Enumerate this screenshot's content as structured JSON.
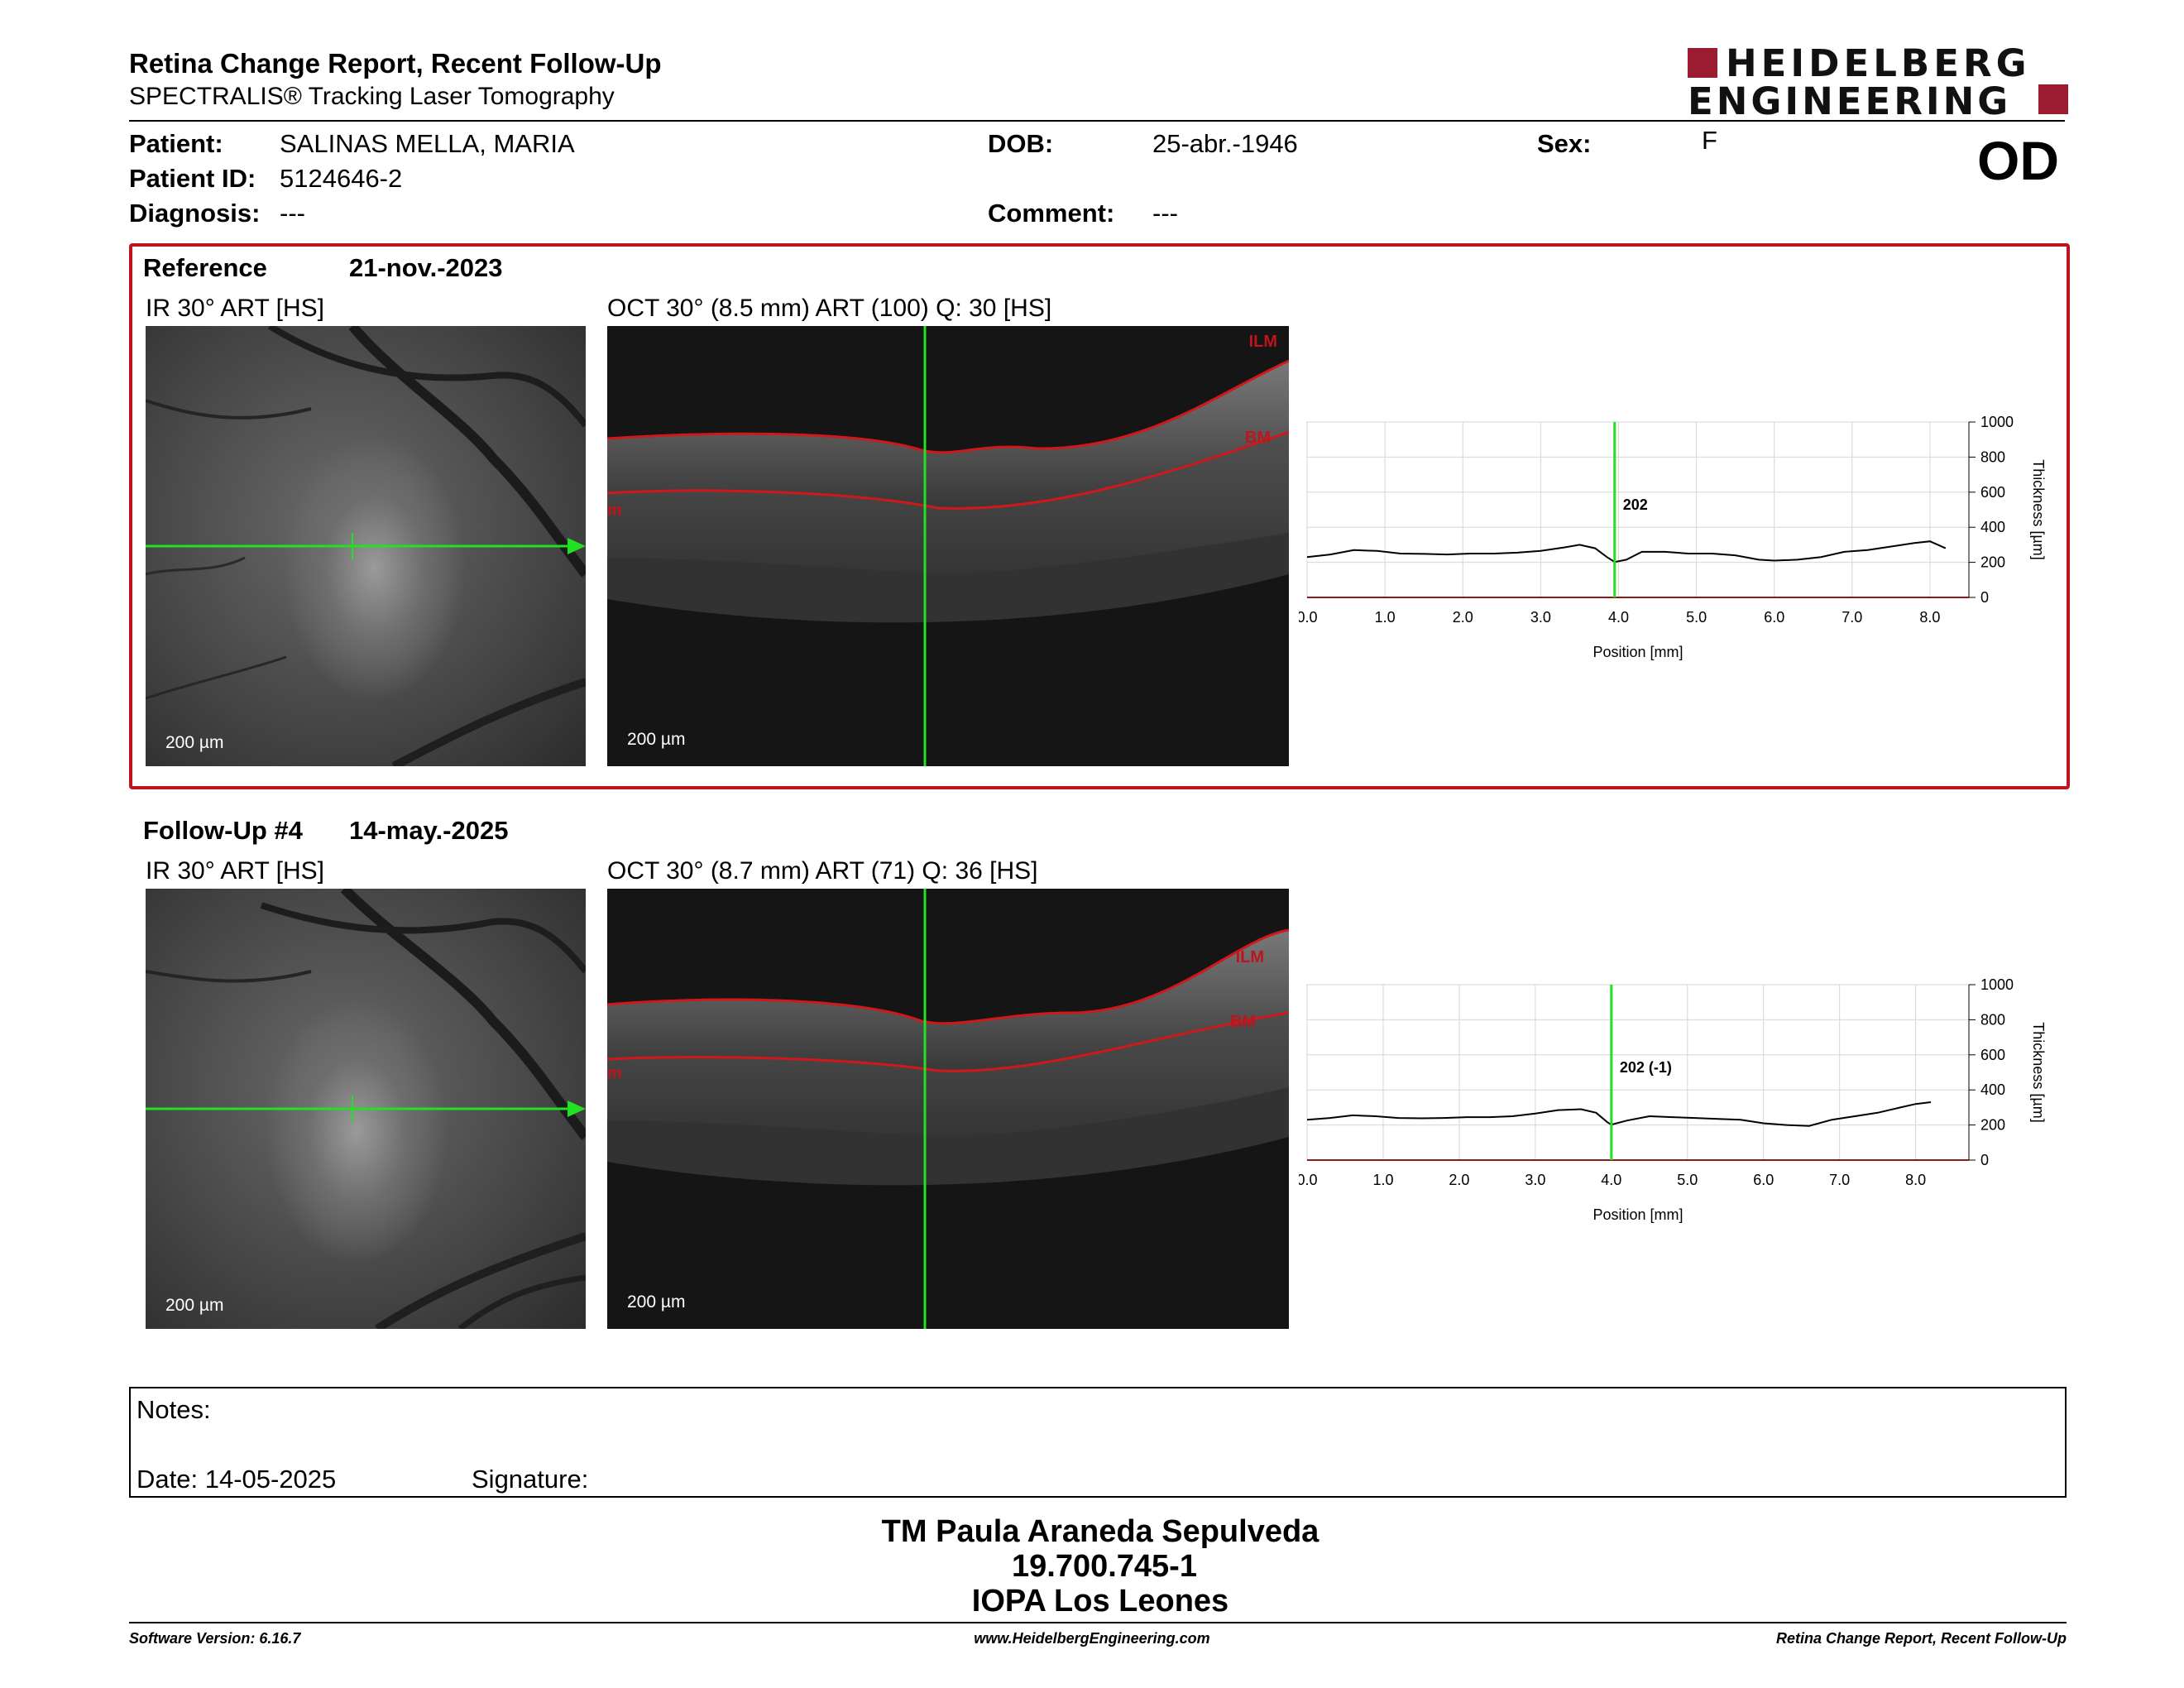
{
  "header": {
    "title": "Retina Change Report, Recent Follow-Up",
    "subtitle": "SPECTRALIS® Tracking Laser Tomography",
    "logo_line1": "HEIDELBERG",
    "logo_line2": "ENGINEERING",
    "eye": "OD"
  },
  "patient": {
    "name_label": "Patient:",
    "name": "SALINAS MELLA, MARIA",
    "id_label": "Patient ID:",
    "id": "5124646-2",
    "diagnosis_label": "Diagnosis:",
    "diagnosis": "---",
    "dob_label": "DOB:",
    "dob": "25-abr.-1946",
    "comment_label": "Comment:",
    "comment": "---",
    "sex_label": "Sex:",
    "sex": "F"
  },
  "reference": {
    "label": "Reference",
    "date": "21-nov.-2023",
    "ir_title": "IR 30° ART [HS]",
    "oct_title": "OCT 30° (8.5 mm) ART (100) Q: 30 [HS]",
    "ir_scale": "200 µm",
    "oct_scale": "200 µm",
    "label_ilm": "ILM",
    "label_bm": "BM",
    "label_edge": "m"
  },
  "followup": {
    "label": "Follow-Up #4",
    "date": "14-may.-2025",
    "ir_title": "IR 30° ART [HS]",
    "oct_title": "OCT 30° (8.7 mm) ART (71) Q: 36 [HS]",
    "ir_scale": "200 µm",
    "oct_scale": "200 µm",
    "label_ilm": "ILM",
    "label_bm": "BM",
    "label_edge": "m"
  },
  "chart_data": [
    {
      "type": "line",
      "xlabel": "Position [mm]",
      "ylabel": "Thickness [µm]",
      "xlim": [
        0,
        8.5
      ],
      "ylim": [
        0,
        1000
      ],
      "xticks": [
        "0.0",
        "1.0",
        "2.0",
        "3.0",
        "4.0",
        "5.0",
        "6.0",
        "7.0",
        "8.0"
      ],
      "yticks": [
        "0",
        "200",
        "400",
        "600",
        "800",
        "1000"
      ],
      "marker_x": 3.95,
      "marker_label": "202",
      "grid": true,
      "series": [
        {
          "x": [
            0,
            0.3,
            0.6,
            0.9,
            1.2,
            1.5,
            1.8,
            2.1,
            2.4,
            2.7,
            3.0,
            3.3,
            3.5,
            3.7,
            3.85,
            3.95,
            4.1,
            4.3,
            4.6,
            4.9,
            5.2,
            5.5,
            5.8,
            6.0,
            6.3,
            6.6,
            6.9,
            7.2,
            7.5,
            7.8,
            8.0,
            8.2
          ],
          "y": [
            230,
            245,
            270,
            265,
            250,
            248,
            245,
            250,
            250,
            255,
            265,
            285,
            300,
            280,
            230,
            202,
            215,
            260,
            260,
            250,
            250,
            240,
            215,
            210,
            215,
            230,
            260,
            270,
            290,
            310,
            320,
            280
          ]
        }
      ]
    },
    {
      "type": "line",
      "xlabel": "Position [mm]",
      "ylabel": "Thickness [µm]",
      "xlim": [
        0,
        8.7
      ],
      "ylim": [
        0,
        1000
      ],
      "xticks": [
        "0.0",
        "1.0",
        "2.0",
        "3.0",
        "4.0",
        "5.0",
        "6.0",
        "7.0",
        "8.0"
      ],
      "yticks": [
        "0",
        "200",
        "400",
        "600",
        "800",
        "1000"
      ],
      "marker_x": 4.0,
      "marker_label": "202 (-1)",
      "grid": true,
      "series": [
        {
          "x": [
            0,
            0.3,
            0.6,
            0.9,
            1.2,
            1.5,
            1.8,
            2.1,
            2.4,
            2.7,
            3.0,
            3.3,
            3.6,
            3.8,
            3.95,
            4.0,
            4.2,
            4.5,
            4.8,
            5.1,
            5.4,
            5.7,
            6.0,
            6.3,
            6.6,
            6.9,
            7.2,
            7.5,
            7.8,
            8.0,
            8.2
          ],
          "y": [
            230,
            240,
            255,
            250,
            240,
            238,
            240,
            245,
            245,
            250,
            265,
            285,
            290,
            270,
            215,
            202,
            225,
            250,
            245,
            240,
            235,
            230,
            210,
            200,
            195,
            230,
            250,
            270,
            300,
            320,
            330
          ]
        }
      ]
    }
  ]
}
